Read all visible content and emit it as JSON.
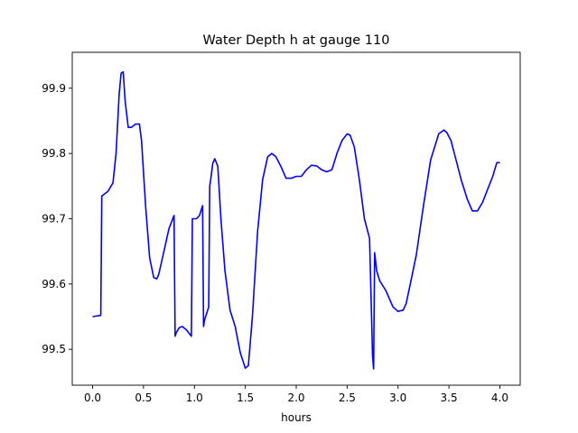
{
  "chart_data": {
    "type": "line",
    "title": "Water Depth h at gauge 110",
    "xlabel": "hours",
    "ylabel": "",
    "xlim": [
      -0.2,
      4.2
    ],
    "ylim": [
      99.445,
      99.955
    ],
    "xticks": [
      0.0,
      0.5,
      1.0,
      1.5,
      2.0,
      2.5,
      3.0,
      3.5,
      4.0
    ],
    "xtick_labels": [
      "0.0",
      "0.5",
      "1.0",
      "1.5",
      "2.0",
      "2.5",
      "3.0",
      "3.5",
      "4.0"
    ],
    "yticks": [
      99.5,
      99.6,
      99.7,
      99.8,
      99.9
    ],
    "ytick_labels": [
      "99.5",
      "99.6",
      "99.7",
      "99.8",
      "99.9"
    ],
    "grid": false,
    "legend": "none",
    "series": [
      {
        "name": "",
        "color": "#0000ff",
        "x": [
          0.0,
          0.08,
          0.09,
          0.1,
          0.15,
          0.2,
          0.23,
          0.26,
          0.28,
          0.3,
          0.32,
          0.35,
          0.38,
          0.42,
          0.46,
          0.48,
          0.52,
          0.56,
          0.6,
          0.63,
          0.65,
          0.7,
          0.75,
          0.8,
          0.81,
          0.82,
          0.85,
          0.88,
          0.92,
          0.97,
          0.98,
          0.99,
          1.02,
          1.05,
          1.08,
          1.09,
          1.1,
          1.14,
          1.15,
          1.16,
          1.18,
          1.2,
          1.23,
          1.26,
          1.3,
          1.35,
          1.4,
          1.45,
          1.5,
          1.53,
          1.57,
          1.62,
          1.67,
          1.72,
          1.76,
          1.8,
          1.85,
          1.9,
          1.95,
          2.0,
          2.05,
          2.1,
          2.15,
          2.2,
          2.25,
          2.3,
          2.35,
          2.4,
          2.45,
          2.5,
          2.53,
          2.57,
          2.62,
          2.67,
          2.72,
          2.75,
          2.76,
          2.77,
          2.78,
          2.79,
          2.82,
          2.88,
          2.95,
          3.0,
          3.05,
          3.08,
          3.12,
          3.18,
          3.25,
          3.32,
          3.4,
          3.45,
          3.48,
          3.52,
          3.57,
          3.62,
          3.68,
          3.73,
          3.78,
          3.83,
          3.88,
          3.93,
          3.97,
          4.0
        ],
        "y": [
          99.55,
          99.552,
          99.735,
          99.736,
          99.742,
          99.755,
          99.8,
          99.89,
          99.923,
          99.925,
          99.88,
          99.84,
          99.84,
          99.845,
          99.845,
          99.82,
          99.72,
          99.64,
          99.61,
          99.608,
          99.615,
          99.65,
          99.685,
          99.705,
          99.52,
          99.525,
          99.533,
          99.535,
          99.53,
          99.52,
          99.7,
          99.7,
          99.7,
          99.705,
          99.72,
          99.535,
          99.545,
          99.565,
          99.75,
          99.76,
          99.785,
          99.792,
          99.78,
          99.7,
          99.62,
          99.56,
          99.535,
          99.495,
          99.471,
          99.475,
          99.55,
          99.68,
          99.76,
          99.795,
          99.8,
          99.795,
          99.78,
          99.762,
          99.762,
          99.765,
          99.765,
          99.775,
          99.782,
          99.781,
          99.775,
          99.772,
          99.775,
          99.8,
          99.82,
          99.83,
          99.828,
          99.81,
          99.76,
          99.7,
          99.67,
          99.49,
          99.47,
          99.648,
          99.635,
          99.62,
          99.605,
          99.59,
          99.565,
          99.558,
          99.56,
          99.57,
          99.6,
          99.645,
          99.72,
          99.79,
          99.83,
          99.836,
          99.832,
          99.82,
          99.79,
          99.76,
          99.73,
          99.712,
          99.712,
          99.725,
          99.745,
          99.765,
          99.786,
          99.786
        ]
      }
    ]
  }
}
